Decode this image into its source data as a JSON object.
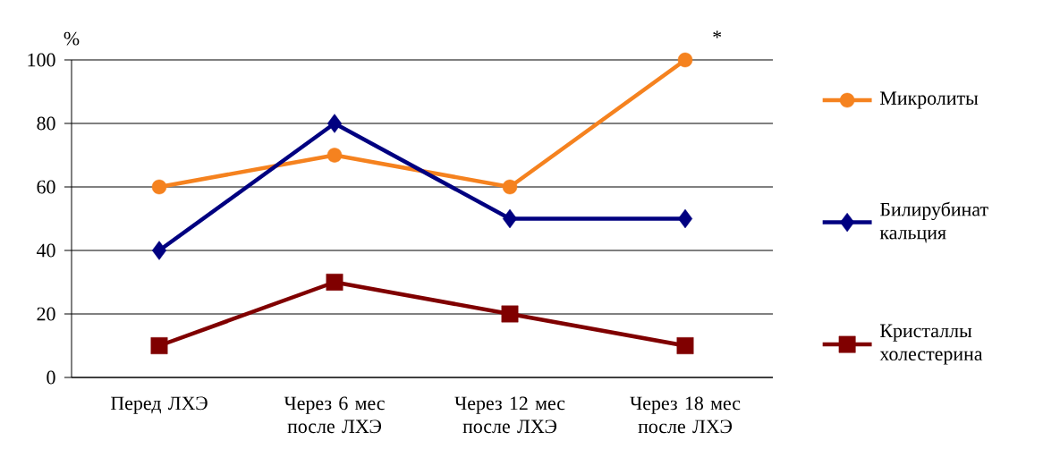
{
  "chart_data": {
    "type": "line",
    "ylabel": "%",
    "categories": [
      "Перед ЛХЭ",
      "Через 6 мес после ЛХЭ",
      "Через 12 мес после ЛХЭ",
      "Через 18 мес после ЛХЭ"
    ],
    "series": [
      {
        "name": "Микролиты",
        "color": "#f5821f",
        "marker": "circle",
        "values": [
          60,
          70,
          60,
          100
        ]
      },
      {
        "name": "Билирубинат кальция",
        "color": "#000080",
        "marker": "diamond",
        "values": [
          40,
          80,
          50,
          50
        ]
      },
      {
        "name": "Кристаллы холестерина",
        "color": "#800000",
        "marker": "square",
        "values": [
          10,
          30,
          20,
          10
        ]
      }
    ],
    "ylim": [
      0,
      100
    ],
    "yticks": [
      0,
      20,
      40,
      60,
      80,
      100
    ],
    "grid": "y",
    "legend": "right",
    "line_style": "solid",
    "annotations": [
      {
        "text": "*",
        "x": "Через 18 мес после ЛХЭ",
        "y": 100
      }
    ]
  }
}
